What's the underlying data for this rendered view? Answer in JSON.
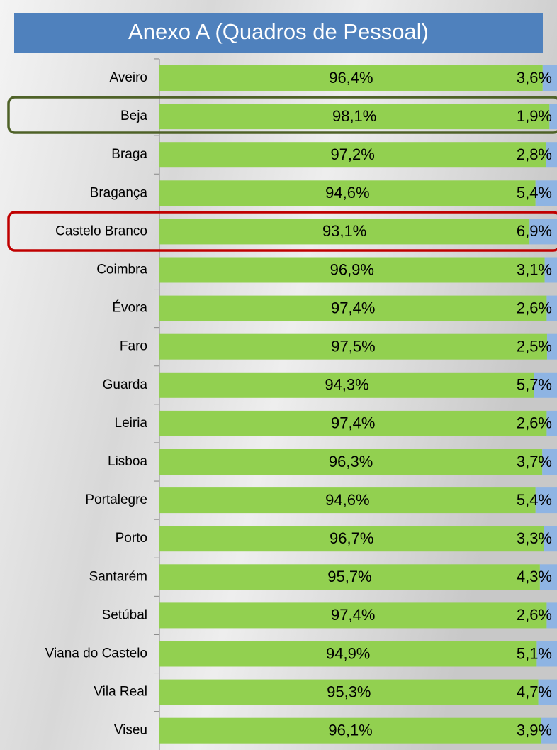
{
  "chart_data": {
    "type": "stacked_barh",
    "title": "Anexo A (Quadros de Pessoal)",
    "categories": [
      "Aveiro",
      "Beja",
      "Braga",
      "Bragança",
      "Castelo Branco",
      "Coimbra",
      "Évora",
      "Faro",
      "Guarda",
      "Leiria",
      "Lisboa",
      "Portalegre",
      "Porto",
      "Santarém",
      "Setúbal",
      "Viana do Castelo",
      "Vila Real",
      "Viseu"
    ],
    "xlim": [
      0,
      100
    ],
    "series": [
      {
        "color": "#92d050",
        "values": [
          96.4,
          98.1,
          97.2,
          94.6,
          93.1,
          96.9,
          97.4,
          97.5,
          94.3,
          97.4,
          96.3,
          94.6,
          96.7,
          95.7,
          97.4,
          94.9,
          95.3,
          96.1
        ],
        "value_labels": [
          "96,4%",
          "98,1%",
          "97,2%",
          "94,6%",
          "93,1%",
          "96,9%",
          "97,4%",
          "97,5%",
          "94,3%",
          "97,4%",
          "96,3%",
          "94,6%",
          "96,7%",
          "95,7%",
          "97,4%",
          "94,9%",
          "95,3%",
          "96,1%"
        ]
      },
      {
        "color": "#8eb4e3",
        "values": [
          3.6,
          1.9,
          2.8,
          5.4,
          6.9,
          3.1,
          2.6,
          2.5,
          5.7,
          2.6,
          3.7,
          5.4,
          3.3,
          4.3,
          2.6,
          5.1,
          4.7,
          3.9
        ],
        "value_labels": [
          "3,6%",
          "1,9%",
          "2,8%",
          "5,4%",
          "6,9%",
          "3,1%",
          "2,6%",
          "2,5%",
          "5,7%",
          "2,6%",
          "3,7%",
          "5,4%",
          "3,3%",
          "4,3%",
          "2,6%",
          "5,1%",
          "4,7%",
          "3,9%"
        ]
      }
    ]
  }
}
